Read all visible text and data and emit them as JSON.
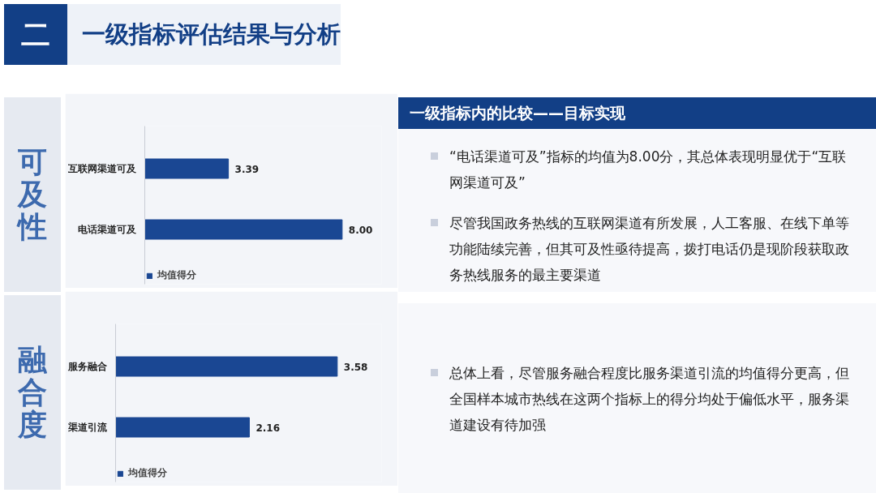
{
  "chart_data": [
    {
      "type": "other",
      "title": "一级指标评估结果与分析",
      "annotations": [
        "二"
      ]
    },
    {
      "type": "bar",
      "title": "可及性",
      "orientation": "horizontal",
      "categories": [
        "互联网渠道可及",
        "电话渠道可及"
      ],
      "series": [
        {
          "name": "均值得分",
          "color": "#1a4793",
          "values": [
            3.39,
            8.0
          ],
          "value_labels": [
            "3.39",
            "8.00"
          ]
        }
      ],
      "legend": "bottom",
      "grid": false
    },
    {
      "type": "other",
      "title": "一级指标内的比较——目标实现",
      "annotations": [
        "“电话渠道可及”指标的均值为8.00分，其总体表现明显优于“互联网渠道可及”",
        "尽管我国政务热线的互联网渠道有所发展，人工客服、在线下单等功能陆续完善，但其可及性亟待提高，拨打电话仍是现阶段获取政务热线服务的最主要渠道"
      ]
    },
    {
      "type": "bar",
      "title": "融合度",
      "orientation": "horizontal",
      "categories": [
        "服务融合",
        "渠道引流"
      ],
      "series": [
        {
          "name": "均值得分",
          "color": "#1a4793",
          "values": [
            3.58,
            2.16
          ],
          "value_labels": [
            "3.58",
            "2.16"
          ]
        }
      ],
      "legend": "bottom",
      "grid": false
    },
    {
      "type": "other",
      "annotations": [
        "总体上看，尽管服务融合程度比服务渠道引流的均值得分更高，但全国样本城市热线在这两个指标上的得分均处于偏低水平，服务渠道建设有待加强"
      ]
    }
  ]
}
